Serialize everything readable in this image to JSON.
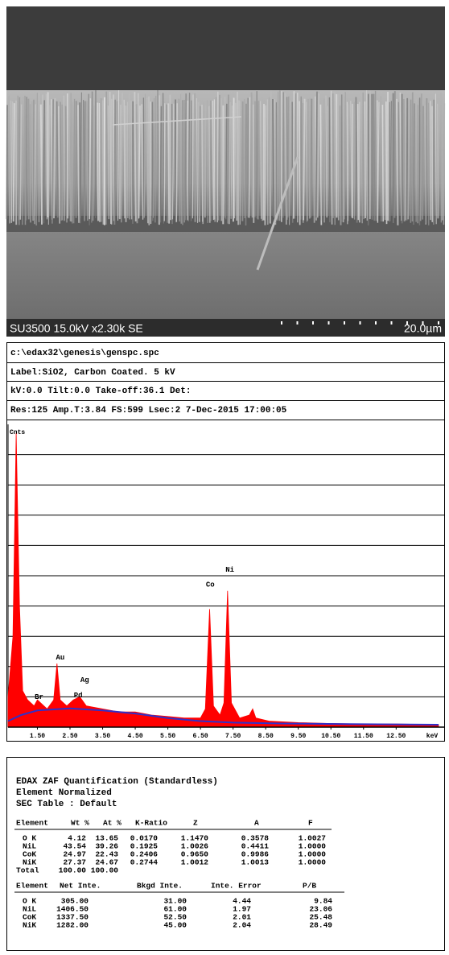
{
  "sem_image": {
    "label": "SU3500 15.0kV x2.30k SE",
    "scale": "20.0µm"
  },
  "spectrum_header": [
    "c:\\edax32\\genesis\\genspc.spc",
    "Label:SiO2, Carbon Coated.  5 kV",
    "kV:0.0 Tilt:0.0 Take-off:36.1    Det:",
    "Res:125 Amp.T:3.84 FS:599 Lsec:2  7-Dec-2015 17:00:05"
  ],
  "chart_data": {
    "type": "area",
    "ylabel": "Cnts",
    "xlabel": "keV",
    "xlim": [
      0.6,
      13.8
    ],
    "ylim": [
      0,
      10
    ],
    "xticks": [
      {
        "value": 1.5,
        "label": "1.50"
      },
      {
        "value": 2.5,
        "label": "2.50"
      },
      {
        "value": 3.5,
        "label": "3.50"
      },
      {
        "value": 4.5,
        "label": "4.50"
      },
      {
        "value": 5.5,
        "label": "5.50"
      },
      {
        "value": 6.5,
        "label": "6.50"
      },
      {
        "value": 7.5,
        "label": "7.50"
      },
      {
        "value": 8.5,
        "label": "8.50"
      },
      {
        "value": 9.5,
        "label": "9.50"
      },
      {
        "value": 10.5,
        "label": "10.50"
      },
      {
        "value": 11.5,
        "label": "11.50"
      },
      {
        "value": 12.5,
        "label": "12.50"
      }
    ],
    "yticks": [
      1,
      2,
      3,
      4,
      5,
      6,
      7,
      8,
      9
    ],
    "grid": true,
    "series": [
      {
        "color": "#ff0000",
        "x": [
          0.6,
          0.75,
          0.85,
          0.95,
          1.05,
          1.2,
          1.4,
          1.5,
          1.6,
          1.8,
          2.0,
          2.1,
          2.2,
          2.4,
          2.6,
          2.8,
          3.0,
          3.5,
          4.0,
          4.5,
          5.0,
          5.5,
          6.0,
          6.5,
          6.65,
          6.78,
          6.9,
          7.1,
          7.22,
          7.33,
          7.45,
          7.7,
          8.0,
          8.1,
          8.2,
          8.6,
          9.5,
          10.5,
          11.5,
          12.5,
          13.8
        ],
        "values": [
          1.0,
          3.0,
          9.7,
          4.0,
          1.2,
          0.9,
          0.7,
          0.9,
          0.8,
          0.6,
          0.9,
          2.1,
          0.9,
          0.7,
          0.9,
          1.0,
          0.7,
          0.6,
          0.5,
          0.5,
          0.4,
          0.35,
          0.3,
          0.3,
          0.6,
          3.9,
          0.7,
          0.4,
          0.8,
          4.5,
          0.8,
          0.3,
          0.4,
          0.6,
          0.3,
          0.2,
          0.15,
          0.12,
          0.1,
          0.1,
          0.08
        ]
      },
      {
        "color": "#3030c8",
        "x": [
          0.6,
          1.0,
          1.5,
          2.5,
          3.5,
          4.5,
          5.5,
          6.5,
          7.5,
          9.0,
          11.0,
          13.8
        ],
        "values": [
          0.2,
          0.4,
          0.55,
          0.62,
          0.55,
          0.45,
          0.3,
          0.2,
          0.15,
          0.12,
          0.1,
          0.08
        ]
      }
    ],
    "annotations": [
      {
        "text": "Au",
        "x": 2.2,
        "y": 2.3
      },
      {
        "text": "Br",
        "x": 1.55,
        "y": 1.0
      },
      {
        "text": "Ag",
        "x": 2.95,
        "y": 1.55
      },
      {
        "text": "Pd",
        "x": 2.75,
        "y": 1.05
      },
      {
        "text": "Co",
        "x": 6.8,
        "y": 4.7
      },
      {
        "text": "Ni",
        "x": 7.4,
        "y": 5.2
      }
    ]
  },
  "quantification": {
    "title": [
      "EDAX ZAF Quantification (Standardless)",
      "Element Normalized",
      "SEC Table : Default"
    ],
    "table1": {
      "header": [
        "Element",
        "Wt %",
        "At %",
        "K-Ratio",
        "Z",
        "A",
        "F"
      ],
      "rows": [
        [
          "O K",
          "4.12",
          "13.65",
          "0.0170",
          "1.1470",
          "0.3578",
          "1.0027"
        ],
        [
          "NiL",
          "43.54",
          "39.26",
          "0.1925",
          "1.0026",
          "0.4411",
          "1.0000"
        ],
        [
          "CoK",
          "24.97",
          "22.43",
          "0.2406",
          "0.9650",
          "0.9986",
          "1.0000"
        ],
        [
          "NiK",
          "27.37",
          "24.67",
          "0.2744",
          "1.0012",
          "1.0013",
          "1.0000"
        ],
        [
          "Total",
          "100.00",
          "100.00"
        ]
      ]
    },
    "table2": {
      "header": [
        "Element",
        "Net Inte.",
        "Bkgd Inte.",
        "Inte. Error",
        "P/B"
      ],
      "rows": [
        [
          "O K",
          "305.00",
          "31.00",
          "4.44",
          "9.84"
        ],
        [
          "NiL",
          "1406.50",
          "61.00",
          "1.97",
          "23.06"
        ],
        [
          "CoK",
          "1337.50",
          "52.50",
          "2.01",
          "25.48"
        ],
        [
          "NiK",
          "1282.00",
          "45.00",
          "2.04",
          "28.49"
        ]
      ]
    }
  }
}
